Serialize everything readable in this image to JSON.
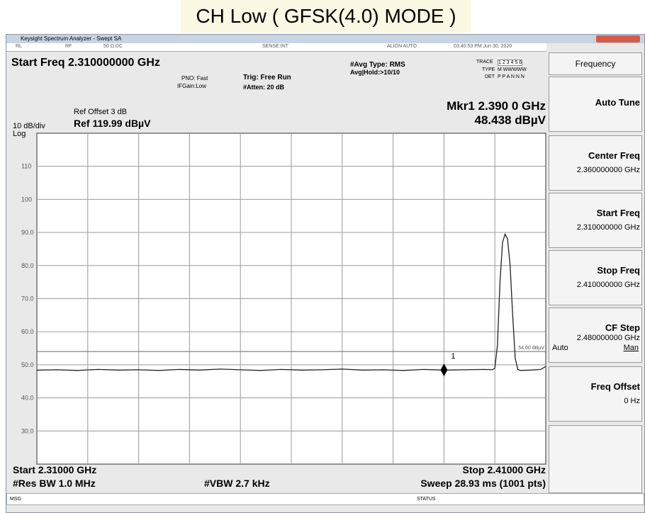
{
  "banner": {
    "title": "CH Low ( GFSK(4.0) MODE )"
  },
  "window": {
    "title": "Keysight Spectrum Analyzer - Swept SA",
    "status": [
      "RL",
      "RF",
      "50 Ω  DC",
      "SENSE:INT",
      "ALIGN AUTO",
      "03:40:53 PM Jun 30, 2020"
    ]
  },
  "header": {
    "start_freq": "Start Freq 2.310000000 GHz",
    "pno": "PNO: Fast",
    "ifgain": "IFGain:Low",
    "trig": "Trig: Free Run",
    "atten": "#Atten: 20 dB",
    "avg_type": "#Avg Type: RMS",
    "avg_hold": "Avg|Hold:>10/10",
    "trace_label": "TRACE",
    "trace_values": "1 2 3 4 5 6",
    "type_label": "TYPE",
    "type_values": "M WWWWW",
    "det_label": "DET",
    "det_values": "P P A N N N",
    "marker_freq": "Mkr1 2.390 0 GHz",
    "marker_level": "48.438 dBµV",
    "ref_offset": "Ref Offset 3 dB",
    "scale": "10 dB/div",
    "ref_level": "Ref 119.99 dBµV",
    "scale_type": "Log"
  },
  "chart_data": {
    "type": "line",
    "xlim": [
      2.31,
      2.41
    ],
    "ylim": [
      19.99,
      119.99
    ],
    "yticks": [
      110,
      100,
      {
        "value": 90,
        "label": "90.0"
      },
      {
        "value": 80,
        "label": "80.0"
      },
      {
        "value": 70,
        "label": "70.0"
      },
      {
        "value": 60,
        "label": "60.0"
      },
      {
        "value": 50,
        "label": "50.0"
      },
      {
        "value": 40,
        "label": "40.0"
      },
      {
        "value": 30,
        "label": "30.0"
      }
    ],
    "grid": true,
    "color": "#222222",
    "x": [
      2.31,
      2.314,
      2.318,
      2.322,
      2.326,
      2.33,
      2.334,
      2.338,
      2.342,
      2.346,
      2.35,
      2.354,
      2.358,
      2.362,
      2.366,
      2.37,
      2.374,
      2.378,
      2.382,
      2.386,
      2.39,
      2.394,
      2.398,
      2.3995,
      2.4,
      2.4005,
      2.401,
      2.4015,
      2.402,
      2.4025,
      2.403,
      2.4035,
      2.404,
      2.4045,
      2.405,
      2.407,
      2.409,
      2.41
    ],
    "values": [
      48.4,
      48.5,
      48.3,
      48.6,
      48.4,
      48.5,
      48.3,
      48.6,
      48.4,
      48.7,
      48.5,
      48.3,
      48.6,
      48.4,
      48.5,
      48.7,
      48.4,
      48.5,
      48.3,
      48.6,
      48.4,
      48.5,
      48.6,
      48.5,
      49,
      56,
      75,
      87,
      89.5,
      88,
      80,
      65,
      52,
      48.6,
      48.3,
      48.4,
      48.6,
      49.5
    ],
    "marker": {
      "label": "1",
      "x": 2.39,
      "value": 48.438
    },
    "display_line": {
      "value": 54,
      "label": "54.00 dBµV"
    }
  },
  "footer": {
    "start": "Start 2.31000 GHz",
    "stop": "Stop 2.41000 GHz",
    "rbw": "#Res BW 1.0 MHz",
    "vbw": "#VBW 2.7 kHz",
    "sweep": "Sweep  28.93 ms (1001 pts)"
  },
  "softkeys": {
    "menu": "Frequency",
    "keys": [
      {
        "label": "Auto Tune"
      },
      {
        "label": "Center Freq",
        "value": "2.360000000 GHz"
      },
      {
        "label": "Start Freq",
        "value": "2.310000000 GHz"
      },
      {
        "label": "Stop Freq",
        "value": "2.410000000 GHz"
      },
      {
        "label": "CF Step",
        "value": "2.480000000 GHz",
        "options": [
          "Auto",
          "Man"
        ]
      },
      {
        "label": "Freq Offset",
        "value": "0 Hz"
      }
    ]
  },
  "statusbar": {
    "msg": "MSG",
    "status": "STATUS"
  }
}
